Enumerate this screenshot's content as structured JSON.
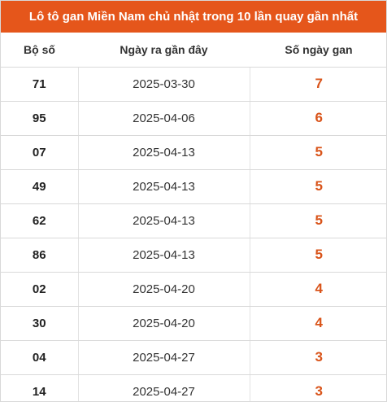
{
  "title": "Lô tô gan Miền Nam chủ nhật trong 10 lần quay gần nhất",
  "colors": {
    "header_bg": "#e5561b",
    "gan_value": "#d9541a"
  },
  "headers": [
    "Bộ số",
    "Ngày ra gần đây",
    "Số ngày gan"
  ],
  "rows": [
    {
      "number": "71",
      "date": "2025-03-30",
      "days": "7"
    },
    {
      "number": "95",
      "date": "2025-04-06",
      "days": "6"
    },
    {
      "number": "07",
      "date": "2025-04-13",
      "days": "5"
    },
    {
      "number": "49",
      "date": "2025-04-13",
      "days": "5"
    },
    {
      "number": "62",
      "date": "2025-04-13",
      "days": "5"
    },
    {
      "number": "86",
      "date": "2025-04-13",
      "days": "5"
    },
    {
      "number": "02",
      "date": "2025-04-20",
      "days": "4"
    },
    {
      "number": "30",
      "date": "2025-04-20",
      "days": "4"
    },
    {
      "number": "04",
      "date": "2025-04-27",
      "days": "3"
    },
    {
      "number": "14",
      "date": "2025-04-27",
      "days": "3"
    }
  ]
}
